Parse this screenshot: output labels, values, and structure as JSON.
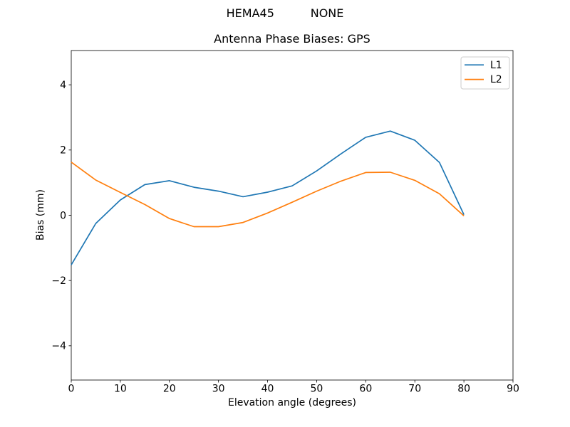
{
  "figure": {
    "suptitle": "HEMA45          NONE"
  },
  "chart_data": {
    "type": "line",
    "title": "Antenna Phase Biases: GPS",
    "xlabel": "Elevation angle (degrees)",
    "ylabel": "Bias (mm)",
    "xlim": [
      0,
      90
    ],
    "ylim": [
      -5.05,
      5.05
    ],
    "xticks": [
      0,
      10,
      20,
      30,
      40,
      50,
      60,
      70,
      80,
      90
    ],
    "xtick_labels": [
      "0",
      "10",
      "20",
      "30",
      "40",
      "50",
      "60",
      "70",
      "80",
      "90"
    ],
    "yticks": [
      -4,
      -2,
      0,
      2,
      4
    ],
    "ytick_labels": [
      "−4",
      "−2",
      "0",
      "2",
      "4"
    ],
    "grid": false,
    "legend": {
      "position": "upper right",
      "entries": [
        "L1",
        "L2"
      ]
    },
    "x": [
      0,
      5,
      10,
      15,
      20,
      25,
      30,
      35,
      40,
      45,
      50,
      55,
      60,
      65,
      70,
      75,
      80
    ],
    "series": [
      {
        "name": "L1",
        "color": "#1f77b4",
        "values": [
          -1.52,
          -0.25,
          0.47,
          0.94,
          1.06,
          0.86,
          0.74,
          0.57,
          0.71,
          0.9,
          1.36,
          1.89,
          2.39,
          2.58,
          2.3,
          1.62,
          0.02
        ]
      },
      {
        "name": "L2",
        "color": "#ff7f0e",
        "values": [
          1.63,
          1.08,
          0.7,
          0.33,
          -0.1,
          -0.35,
          -0.35,
          -0.22,
          0.07,
          0.4,
          0.74,
          1.05,
          1.31,
          1.32,
          1.07,
          0.66,
          -0.02
        ]
      }
    ]
  }
}
